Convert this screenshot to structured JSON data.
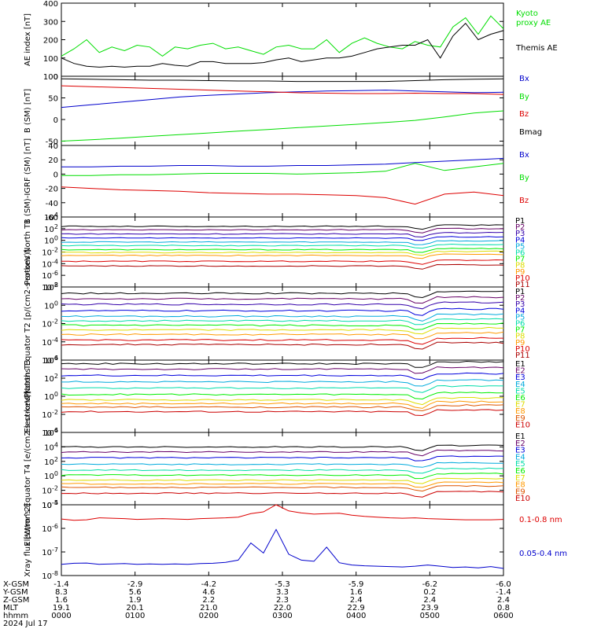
{
  "chart_data": [
    {
      "type": "line",
      "ylabel": "AE index [nT]",
      "ylim": [
        0,
        400
      ],
      "yticks": [
        "0",
        "100",
        "200",
        "300",
        "400"
      ],
      "series": [
        {
          "name": "Kyoto proxy AE",
          "color": "#00dd00",
          "values": [
            110,
            150,
            200,
            130,
            160,
            140,
            170,
            160,
            110,
            160,
            150,
            170,
            180,
            150,
            160,
            140,
            120,
            160,
            170,
            150,
            150,
            200,
            130,
            180,
            210,
            180,
            160,
            150,
            190,
            170,
            160,
            270,
            320,
            230,
            330,
            260
          ]
        },
        {
          "name": "Themis AE",
          "color": "#000000",
          "values": [
            100,
            70,
            55,
            50,
            55,
            50,
            55,
            55,
            70,
            60,
            55,
            80,
            80,
            70,
            70,
            70,
            75,
            90,
            100,
            80,
            90,
            100,
            100,
            110,
            130,
            150,
            160,
            170,
            170,
            200,
            100,
            220,
            290,
            200,
            230,
            250
          ]
        }
      ]
    },
    {
      "type": "line",
      "ylabel": "B (SM) [nT]",
      "ylim": [
        -60,
        100
      ],
      "yticks": [
        "-50",
        "0",
        "50",
        "100"
      ],
      "series": [
        {
          "name": "Bx",
          "color": "#0000cc",
          "values": [
            28,
            34,
            40,
            46,
            52,
            56,
            59,
            62,
            64,
            66,
            67,
            68,
            66,
            64,
            62,
            63
          ]
        },
        {
          "name": "By",
          "color": "#00dd00",
          "values": [
            -50,
            -47,
            -43,
            -39,
            -35,
            -31,
            -27,
            -23,
            -19,
            -15,
            -11,
            -7,
            -2,
            6,
            15,
            20
          ]
        },
        {
          "name": "Bz",
          "color": "#dd0000",
          "values": [
            78,
            76,
            74,
            72,
            70,
            68,
            66,
            64,
            62,
            61,
            60,
            60,
            61,
            60,
            60,
            58
          ]
        },
        {
          "name": "Bmag",
          "color": "#000000",
          "values": [
            94,
            93,
            92,
            91,
            91,
            90,
            89,
            89,
            88,
            88,
            88,
            88,
            90,
            92,
            93,
            94
          ]
        }
      ]
    },
    {
      "type": "line",
      "ylabel": "B (SM)-IGRF (SM) [nT]",
      "ylim": [
        -60,
        40
      ],
      "yticks": [
        "-60",
        "-40",
        "-20",
        "0",
        "20",
        "40"
      ],
      "series": [
        {
          "name": "Bx",
          "color": "#0000cc",
          "values": [
            10,
            10,
            11,
            11,
            12,
            12,
            11,
            11,
            12,
            12,
            13,
            14,
            16,
            18,
            20,
            22
          ]
        },
        {
          "name": "By",
          "color": "#00dd00",
          "values": [
            -2,
            -2,
            -1,
            -1,
            0,
            1,
            1,
            1,
            0,
            1,
            2,
            4,
            15,
            5,
            10,
            15
          ]
        },
        {
          "name": "Bz",
          "color": "#dd0000",
          "values": [
            -18,
            -20,
            -22,
            -23,
            -24,
            -26,
            -27,
            -28,
            -28,
            -29,
            -30,
            -33,
            -42,
            -28,
            -25,
            -30
          ]
        }
      ]
    },
    {
      "type": "line",
      "ylabel": "Protons North T1",
      "ylog": true,
      "ylim": [
        -8,
        4
      ],
      "yticks": [
        "10^-8",
        "10^-6",
        "10^-4",
        "10^-2",
        "10^0",
        "10^2",
        "10^4"
      ],
      "series": [
        {
          "name": "P1",
          "color": "#000000",
          "exp": 2.4
        },
        {
          "name": "P2",
          "color": "#660066",
          "exp": 1.8
        },
        {
          "name": "P3",
          "color": "#3300aa",
          "exp": 1.1
        },
        {
          "name": "P4",
          "color": "#0000dd",
          "exp": 0.4
        },
        {
          "name": "P5",
          "color": "#00aadd",
          "exp": -0.3
        },
        {
          "name": "P6",
          "color": "#00ddaa",
          "exp": -0.9
        },
        {
          "name": "P7",
          "color": "#00ee00",
          "exp": -1.6
        },
        {
          "name": "P8",
          "color": "#dddd00",
          "exp": -2.1
        },
        {
          "name": "P9",
          "color": "#ff9900",
          "exp": -2.6
        },
        {
          "name": "P10",
          "color": "#dd0000",
          "exp": -3.6
        },
        {
          "name": "P11",
          "color": "#aa0000",
          "exp": -4.4
        }
      ]
    },
    {
      "type": "line",
      "ylabel": "Protons Equator T2 [p/(cm2-s-sr-keV)]",
      "ylog": true,
      "ylim": [
        -6,
        2
      ],
      "yticks": [
        "10^-6",
        "10^-4",
        "10^-2",
        "10^0",
        "10^2"
      ],
      "series": [
        {
          "name": "P1",
          "color": "#000000",
          "exp": 1.3
        },
        {
          "name": "P2",
          "color": "#660066",
          "exp": 0.7
        },
        {
          "name": "P3",
          "color": "#3300aa",
          "exp": 0.1
        },
        {
          "name": "P4",
          "color": "#0000dd",
          "exp": -0.6
        },
        {
          "name": "P5",
          "color": "#00aadd",
          "exp": -1.2
        },
        {
          "name": "P6",
          "color": "#00ddaa",
          "exp": -1.7
        },
        {
          "name": "P7",
          "color": "#00ee00",
          "exp": -2.2
        },
        {
          "name": "P8",
          "color": "#dddd00",
          "exp": -2.7
        },
        {
          "name": "P9",
          "color": "#ff9900",
          "exp": -3.2
        },
        {
          "name": "P10",
          "color": "#dd0000",
          "exp": -3.8
        },
        {
          "name": "P11",
          "color": "#aa0000",
          "exp": -4.3
        }
      ]
    },
    {
      "type": "line",
      "ylabel": "Electrons North T3",
      "ylog": true,
      "ylim": [
        -4,
        4
      ],
      "yticks": [
        "10^-4",
        "10^-2",
        "10^0",
        "10^2",
        "10^4"
      ],
      "series": [
        {
          "name": "E1",
          "color": "#000000",
          "exp": 3.6
        },
        {
          "name": "E2",
          "color": "#660066",
          "exp": 3.0
        },
        {
          "name": "E3",
          "color": "#0000dd",
          "exp": 2.3
        },
        {
          "name": "E4",
          "color": "#00aadd",
          "exp": 1.6
        },
        {
          "name": "E5",
          "color": "#00ddaa",
          "exp": 0.9
        },
        {
          "name": "E6",
          "color": "#00ee00",
          "exp": 0.2
        },
        {
          "name": "E7",
          "color": "#dddd00",
          "exp": -0.4
        },
        {
          "name": "E8",
          "color": "#ff9900",
          "exp": -0.8
        },
        {
          "name": "E9",
          "color": "#dd5500",
          "exp": -1.2
        },
        {
          "name": "E10",
          "color": "#cc0000",
          "exp": -1.7
        }
      ]
    },
    {
      "type": "line",
      "ylabel": "Electrons Equator T4 [e/(cm2-s-sr-keV)]",
      "ylog": true,
      "ylim": [
        -4,
        6
      ],
      "yticks": [
        "10^-4",
        "10^-2",
        "10^0",
        "10^2",
        "10^4",
        "10^6"
      ],
      "series": [
        {
          "name": "E1",
          "color": "#000000",
          "exp": 4.0
        },
        {
          "name": "E2",
          "color": "#660066",
          "exp": 3.3
        },
        {
          "name": "E3",
          "color": "#0000dd",
          "exp": 2.5
        },
        {
          "name": "E4",
          "color": "#00aadd",
          "exp": 1.6
        },
        {
          "name": "E5",
          "color": "#00ddaa",
          "exp": 0.8
        },
        {
          "name": "E6",
          "color": "#00ee00",
          "exp": 0.1
        },
        {
          "name": "E7",
          "color": "#dddd00",
          "exp": -0.6
        },
        {
          "name": "E8",
          "color": "#ff9900",
          "exp": -1.1
        },
        {
          "name": "E9",
          "color": "#dd5500",
          "exp": -1.6
        },
        {
          "name": "E10",
          "color": "#cc0000",
          "exp": -2.4
        }
      ]
    },
    {
      "type": "line",
      "ylabel": "Xray flux [W/m^2]",
      "ylog": true,
      "ylim": [
        -8,
        -5
      ],
      "yticks": [
        "10^-8",
        "10^-7",
        "10^-6",
        "10^-5"
      ],
      "series": [
        {
          "name": "0.1-0.8 nm",
          "color": "#dd0000",
          "values": [
            2.5e-06,
            2.2e-06,
            2.3e-06,
            2.8e-06,
            2.7e-06,
            2.6e-06,
            2.4e-06,
            2.5e-06,
            2.6e-06,
            2.5e-06,
            2.4e-06,
            2.6e-06,
            2.7e-06,
            2.8e-06,
            3e-06,
            4.2e-06,
            5e-06,
            1.2e-05,
            5.5e-06,
            4.5e-06,
            4e-06,
            4.2e-06,
            4.4e-06,
            3.6e-06,
            3.2e-06,
            3e-06,
            2.8e-06,
            2.7e-06,
            2.8e-06,
            2.6e-06,
            2.5e-06,
            2.4e-06,
            2.3e-06,
            2.3e-06,
            2.3e-06,
            2.4e-06
          ]
        },
        {
          "name": "0.05-0.4 nm",
          "color": "#0000cc",
          "values": [
            3e-08,
            3.3e-08,
            3.4e-08,
            3e-08,
            3.1e-08,
            3.2e-08,
            3e-08,
            3.1e-08,
            3e-08,
            3.1e-08,
            3e-08,
            3.2e-08,
            3.3e-08,
            3.6e-08,
            4.5e-08,
            2.4e-07,
            9e-08,
            9e-07,
            8e-08,
            4.5e-08,
            4e-08,
            1.6e-07,
            3.5e-08,
            2.8e-08,
            2.6e-08,
            2.5e-08,
            2.4e-08,
            2.3e-08,
            2.5e-08,
            2.8e-08,
            2.5e-08,
            2.2e-08,
            2.3e-08,
            2.1e-08,
            2.4e-08,
            2e-08
          ]
        }
      ]
    }
  ],
  "x_axis": {
    "rows": [
      {
        "label": "X-GSM",
        "values": [
          "-1.4",
          "-2.9",
          "-4.2",
          "-5.3",
          "-5.9",
          "-6.2",
          "-6.0"
        ]
      },
      {
        "label": "Y-GSM",
        "values": [
          "8.3",
          "5.6",
          "4.6",
          "3.3",
          "1.6",
          "0.2",
          "-1.4"
        ]
      },
      {
        "label": "Z-GSM",
        "values": [
          "1.6",
          "1.9",
          "2.2",
          "2.3",
          "2.4",
          "2.4",
          "2.4"
        ]
      },
      {
        "label": "MLT",
        "values": [
          "19.1",
          "20.1",
          "21.0",
          "22.0",
          "22.9",
          "23.9",
          "0.8"
        ]
      },
      {
        "label": "hhmm",
        "values": [
          "0000",
          "0100",
          "0200",
          "0300",
          "0400",
          "0500",
          "0600"
        ]
      }
    ],
    "date": "2024 Jul 17"
  }
}
